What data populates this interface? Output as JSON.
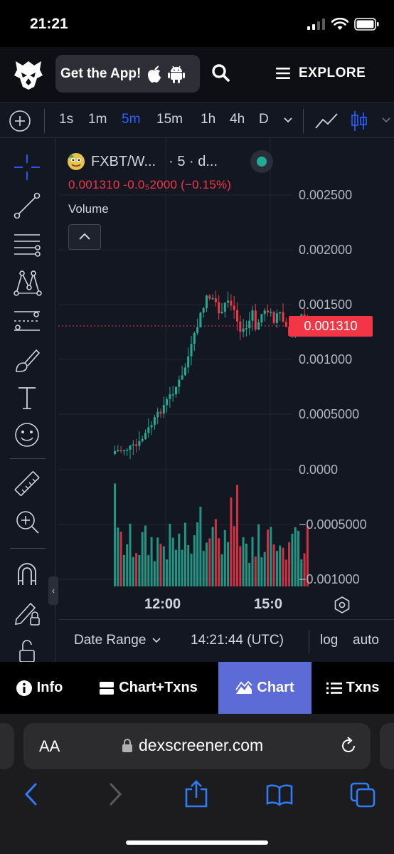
{
  "status_bar": {
    "time": "21:21"
  },
  "header": {
    "get_app_label": "Get the App!",
    "explore_label": "EXPLORE"
  },
  "toolbar": {
    "intervals": [
      "1s",
      "1m",
      "5m",
      "15m",
      "1h",
      "4h",
      "D"
    ],
    "active_interval": "5m"
  },
  "chart": {
    "pair": "FXBT/W...",
    "interval_info": "· 5 · d...",
    "legend_values": "0.001310  -0.0₅2000 (−0.15%)",
    "volume_label": "Volume",
    "price_axis": [
      "0.002500",
      "0.002000",
      "0.001500",
      "0.001000",
      "0.0005000",
      "0.0000",
      "−0.0005000",
      "−0.001000"
    ],
    "current_price": "0.001310",
    "time_axis": [
      "12:00",
      "15:0"
    ],
    "date_range_label": "Date Range",
    "clock": "14:21:44 (UTC)",
    "log_label": "log",
    "auto_label": "auto",
    "colors": {
      "up": "#22ab94",
      "down": "#f23645",
      "background": "#131722",
      "accent": "#2962ff"
    }
  },
  "view_tabs": [
    {
      "label": "Info",
      "icon": "info-icon"
    },
    {
      "label": "Chart+Txns",
      "icon": "split-view-icon"
    },
    {
      "label": "Chart",
      "icon": "mountain-chart-icon",
      "active": true
    },
    {
      "label": "Txns",
      "icon": "list-icon"
    }
  ],
  "safari": {
    "text_size": "AA",
    "url": "dexscreener.com"
  }
}
